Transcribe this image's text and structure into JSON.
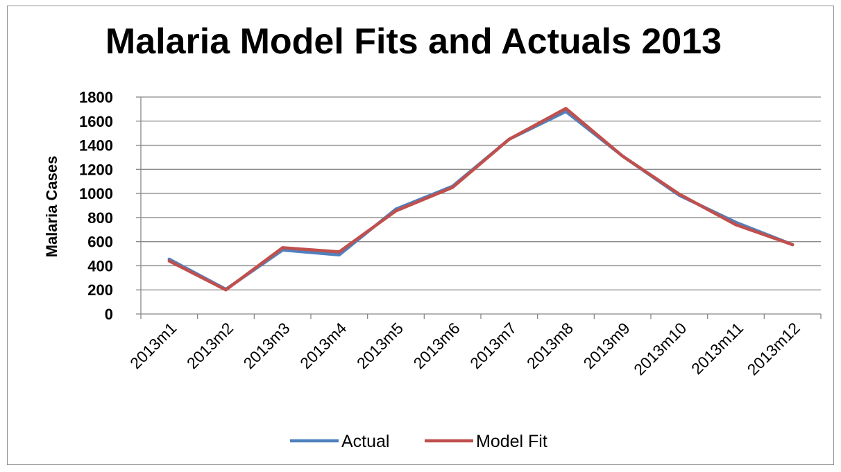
{
  "chart_data": {
    "type": "line",
    "title": "Malaria Model Fits and Actuals 2013",
    "xlabel": "",
    "ylabel": "Malaria Cases",
    "ylim": [
      0,
      1800
    ],
    "yticks": [
      0,
      200,
      400,
      600,
      800,
      1000,
      1200,
      1400,
      1600,
      1800
    ],
    "grid": "horizontal",
    "legend": "bottom",
    "categories": [
      "2013m1",
      "2013m2",
      "2013m3",
      "2013m4",
      "2013m5",
      "2013m6",
      "2013m7",
      "2013m8",
      "2013m9",
      "2013m10",
      "2013m11",
      "2013m12"
    ],
    "series": [
      {
        "name": "Actual",
        "color": "#4f81bd",
        "values": [
          455,
          205,
          530,
          490,
          870,
          1060,
          1450,
          1680,
          1310,
          985,
          760,
          575
        ]
      },
      {
        "name": "Model Fit",
        "color": "#c0504d",
        "values": [
          440,
          200,
          550,
          515,
          855,
          1050,
          1450,
          1705,
          1310,
          995,
          740,
          575
        ]
      }
    ]
  }
}
